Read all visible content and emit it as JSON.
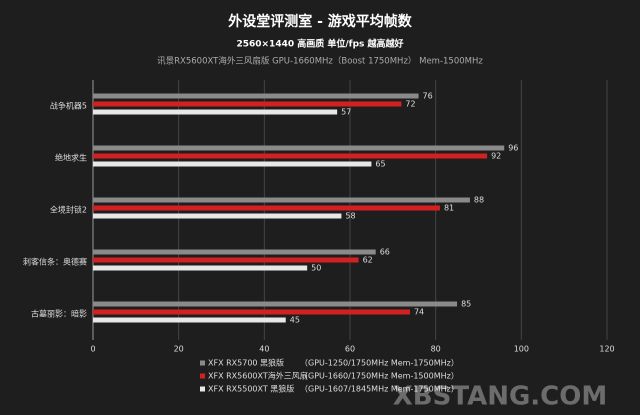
{
  "chart_data": {
    "type": "bar",
    "orientation": "horizontal",
    "title": "外设堂评测室  -  游戏平均帧数",
    "subtitle": "2560×1440  高画质  单位/fps  越高越好",
    "subtitle2": "讯景RX5600XT海外三风扇版   GPU-1660MHz（Boost 1750MHz）    Mem-1500MHz",
    "categories": [
      "战争机器5",
      "绝地求生",
      "全境封锁2",
      "刺客信条：奥德赛",
      "古墓丽影：暗影"
    ],
    "series": [
      {
        "name": "XFX RX5700 黑狼版",
        "note": "（GPU-1250/1750MHz Mem-1750MHz）",
        "color": "#8a8a8a",
        "values": [
          76,
          96,
          88,
          66,
          85
        ]
      },
      {
        "name": "XFX RX5600XT海外三风扇",
        "note": "（GPU-1660/1750MHz Mem-1500MHz）",
        "color": "#d42020",
        "values": [
          72,
          92,
          81,
          62,
          74
        ]
      },
      {
        "name": "XFX RX5500XT 黑狼版",
        "note": "（GPU-1607/1845MHz Mem-1750MHz）",
        "color": "#e8e8e8",
        "values": [
          57,
          65,
          58,
          50,
          45
        ]
      }
    ],
    "xlim": [
      0,
      120
    ],
    "xticks": [
      0,
      20,
      40,
      60,
      80,
      100,
      120
    ],
    "grid": true,
    "watermark": "XBSTANG.COM"
  }
}
